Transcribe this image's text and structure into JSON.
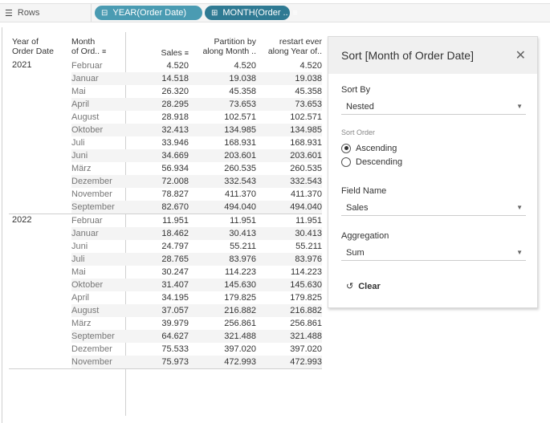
{
  "shelf": {
    "label": "Rows",
    "icon": "rows-list-icon",
    "pills": [
      {
        "label": "YEAR(Order Date)",
        "icon": "collapse-minus-icon",
        "color": "#4a9bb2"
      },
      {
        "label": "MONTH(Order ..",
        "icon": "expand-plus-icon",
        "sort_icon": "sort-ascending-icon",
        "color": "#2f7a93"
      }
    ]
  },
  "table": {
    "headers": {
      "year": [
        "Year of",
        "Order Date"
      ],
      "month": [
        "Month",
        "of Ord.."
      ],
      "sales": "Sales",
      "partition": [
        "Partition by",
        "along Month .."
      ],
      "restart": [
        "restart ever",
        "along Year of.."
      ]
    },
    "groups": [
      {
        "year": "2021",
        "rows": [
          {
            "month": "Februar",
            "sales": "4.520",
            "partition": "4.520",
            "restart": "4.520"
          },
          {
            "month": "Januar",
            "sales": "14.518",
            "partition": "19.038",
            "restart": "19.038"
          },
          {
            "month": "Mai",
            "sales": "26.320",
            "partition": "45.358",
            "restart": "45.358"
          },
          {
            "month": "April",
            "sales": "28.295",
            "partition": "73.653",
            "restart": "73.653"
          },
          {
            "month": "August",
            "sales": "28.918",
            "partition": "102.571",
            "restart": "102.571"
          },
          {
            "month": "Oktober",
            "sales": "32.413",
            "partition": "134.985",
            "restart": "134.985"
          },
          {
            "month": "Juli",
            "sales": "33.946",
            "partition": "168.931",
            "restart": "168.931"
          },
          {
            "month": "Juni",
            "sales": "34.669",
            "partition": "203.601",
            "restart": "203.601"
          },
          {
            "month": "März",
            "sales": "56.934",
            "partition": "260.535",
            "restart": "260.535"
          },
          {
            "month": "Dezember",
            "sales": "72.008",
            "partition": "332.543",
            "restart": "332.543"
          },
          {
            "month": "November",
            "sales": "78.827",
            "partition": "411.370",
            "restart": "411.370"
          },
          {
            "month": "September",
            "sales": "82.670",
            "partition": "494.040",
            "restart": "494.040"
          }
        ]
      },
      {
        "year": "2022",
        "rows": [
          {
            "month": "Februar",
            "sales": "11.951",
            "partition": "11.951",
            "restart": "11.951"
          },
          {
            "month": "Januar",
            "sales": "18.462",
            "partition": "30.413",
            "restart": "30.413"
          },
          {
            "month": "Juni",
            "sales": "24.797",
            "partition": "55.211",
            "restart": "55.211"
          },
          {
            "month": "Juli",
            "sales": "28.765",
            "partition": "83.976",
            "restart": "83.976"
          },
          {
            "month": "Mai",
            "sales": "30.247",
            "partition": "114.223",
            "restart": "114.223"
          },
          {
            "month": "Oktober",
            "sales": "31.407",
            "partition": "145.630",
            "restart": "145.630"
          },
          {
            "month": "April",
            "sales": "34.195",
            "partition": "179.825",
            "restart": "179.825"
          },
          {
            "month": "August",
            "sales": "37.057",
            "partition": "216.882",
            "restart": "216.882"
          },
          {
            "month": "März",
            "sales": "39.979",
            "partition": "256.861",
            "restart": "256.861"
          },
          {
            "month": "September",
            "sales": "64.627",
            "partition": "321.488",
            "restart": "321.488"
          },
          {
            "month": "Dezember",
            "sales": "75.533",
            "partition": "397.020",
            "restart": "397.020"
          },
          {
            "month": "November",
            "sales": "75.973",
            "partition": "472.993",
            "restart": "472.993"
          }
        ]
      }
    ]
  },
  "sort_panel": {
    "title": "Sort [Month of Order Date]",
    "close_icon": "close-x-icon",
    "sort_by_label": "Sort By",
    "sort_by_value": "Nested",
    "sort_order_label": "Sort Order",
    "ascending_label": "Ascending",
    "descending_label": "Descending",
    "selected_order": "Ascending",
    "field_name_label": "Field Name",
    "field_name_value": "Sales",
    "aggregation_label": "Aggregation",
    "aggregation_value": "Sum",
    "clear_label": "Clear"
  }
}
